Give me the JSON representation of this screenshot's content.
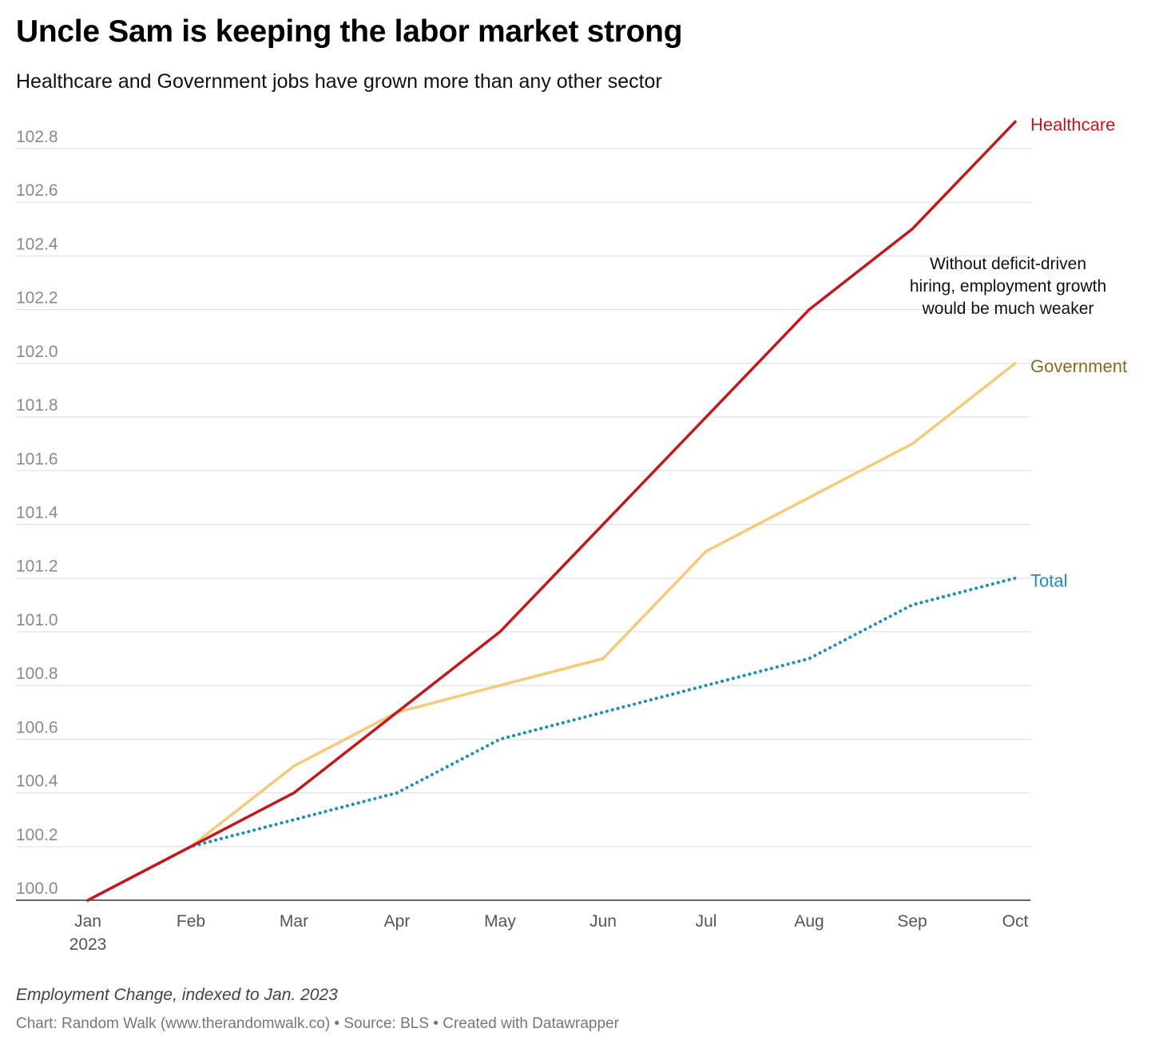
{
  "chart_data": {
    "type": "line",
    "title": "Uncle Sam is keeping the labor market strong",
    "subtitle": "Healthcare and Government jobs have grown more than any other sector",
    "categories": [
      "Jan",
      "Feb",
      "Mar",
      "Apr",
      "May",
      "Jun",
      "Jul",
      "Aug",
      "Sep",
      "Oct"
    ],
    "x_sublabel": "2023",
    "y_ticks": [
      "100.0",
      "100.2",
      "100.4",
      "100.6",
      "100.8",
      "101.0",
      "101.2",
      "101.4",
      "101.6",
      "101.8",
      "102.0",
      "102.2",
      "102.4",
      "102.6",
      "102.8"
    ],
    "ylim": [
      100.0,
      102.9
    ],
    "grid": true,
    "legend": "direct labels at line ends",
    "series": [
      {
        "name": "Healthcare",
        "color": "#c0191f",
        "style": "solid",
        "values": [
          100.0,
          100.2,
          100.4,
          100.7,
          101.0,
          101.4,
          101.8,
          102.2,
          102.5,
          102.9
        ]
      },
      {
        "name": "Government",
        "color": "#f7c97a",
        "label_color": "#8a6a1a",
        "style": "solid",
        "values": [
          100.0,
          100.2,
          100.5,
          100.7,
          100.8,
          100.9,
          101.3,
          101.5,
          101.7,
          102.0
        ]
      },
      {
        "name": "Total",
        "color": "#1a8fba",
        "style": "dotted",
        "values": [
          100.0,
          100.2,
          100.3,
          100.4,
          100.6,
          100.7,
          100.8,
          100.9,
          101.1,
          101.2
        ]
      }
    ],
    "annotation": [
      "Without deficit-driven",
      "hiring, employment growth",
      "would be much weaker"
    ],
    "notes": "Employment Change, indexed to Jan. 2023",
    "credits": "Chart: Random Walk (www.therandomwalk.co) • Source: BLS • Created with Datawrapper"
  }
}
